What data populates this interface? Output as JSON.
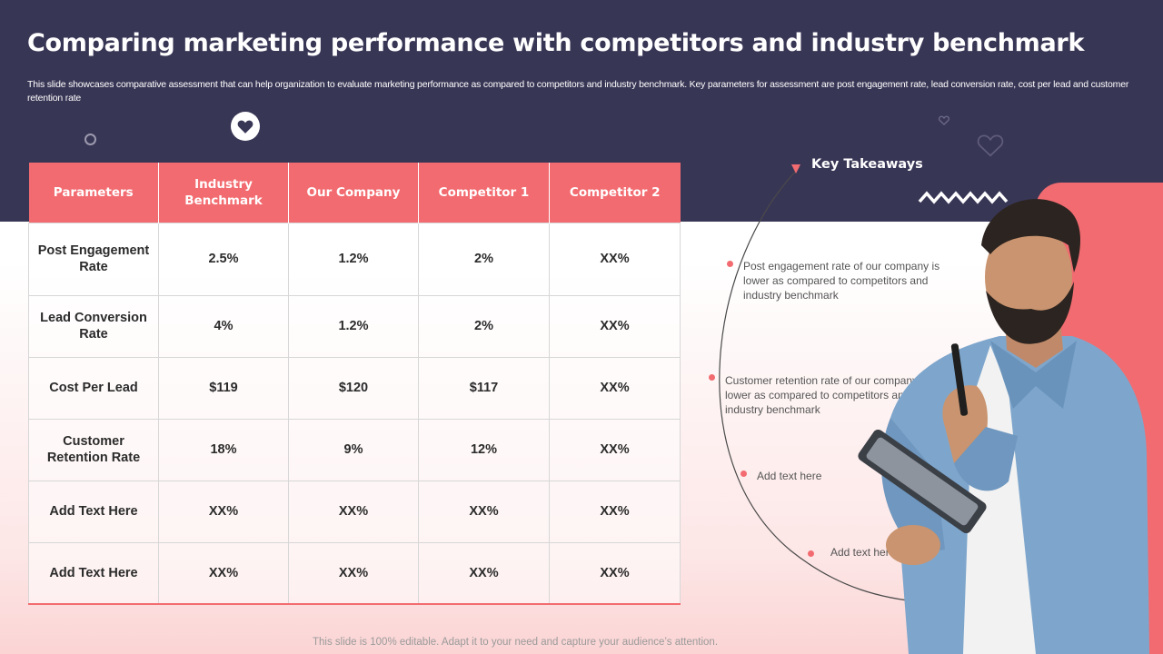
{
  "title": "Comparing marketing performance with competitors and industry benchmark",
  "subtitle": "This slide showcases comparative assessment that can help organization to evaluate marketing performance as compared to competitors and industry benchmark. Key parameters for assessment are post engagement rate, lead conversion rate, cost per lead and customer retention rate",
  "table": {
    "headers": [
      "Parameters",
      "Industry Benchmark",
      "Our Company",
      "Competitor 1",
      "Competitor 2"
    ],
    "rows": [
      [
        "Post Engagement Rate",
        "2.5%",
        "1.2%",
        "2%",
        "XX%"
      ],
      [
        "Lead Conversion Rate",
        "4%",
        "1.2%",
        "2%",
        "XX%"
      ],
      [
        "Cost Per Lead",
        "$119",
        "$120",
        "$117",
        "XX%"
      ],
      [
        "Customer Retention Rate",
        "18%",
        "9%",
        "12%",
        "XX%"
      ],
      [
        "Add Text Here",
        "XX%",
        "XX%",
        "XX%",
        "XX%"
      ],
      [
        "Add Text Here",
        "XX%",
        "XX%",
        "XX%",
        "XX%"
      ]
    ]
  },
  "takeaways": {
    "title": "Key Takeaways",
    "items": [
      "Post engagement rate of our company is lower as compared to competitors and industry benchmark",
      "Customer retention rate of our company lower as compared to competitors and industry benchmark",
      "Add text here",
      "Add text here"
    ]
  },
  "footer": "This slide is 100% editable. Adapt it to your need and capture your audience’s attention.",
  "colors": {
    "band": "#383655",
    "accent": "#f26b70"
  },
  "icons": [
    "heart-icon",
    "ring-decoration",
    "outline-heart-icon",
    "zigzag-decoration",
    "arrow-icon"
  ]
}
